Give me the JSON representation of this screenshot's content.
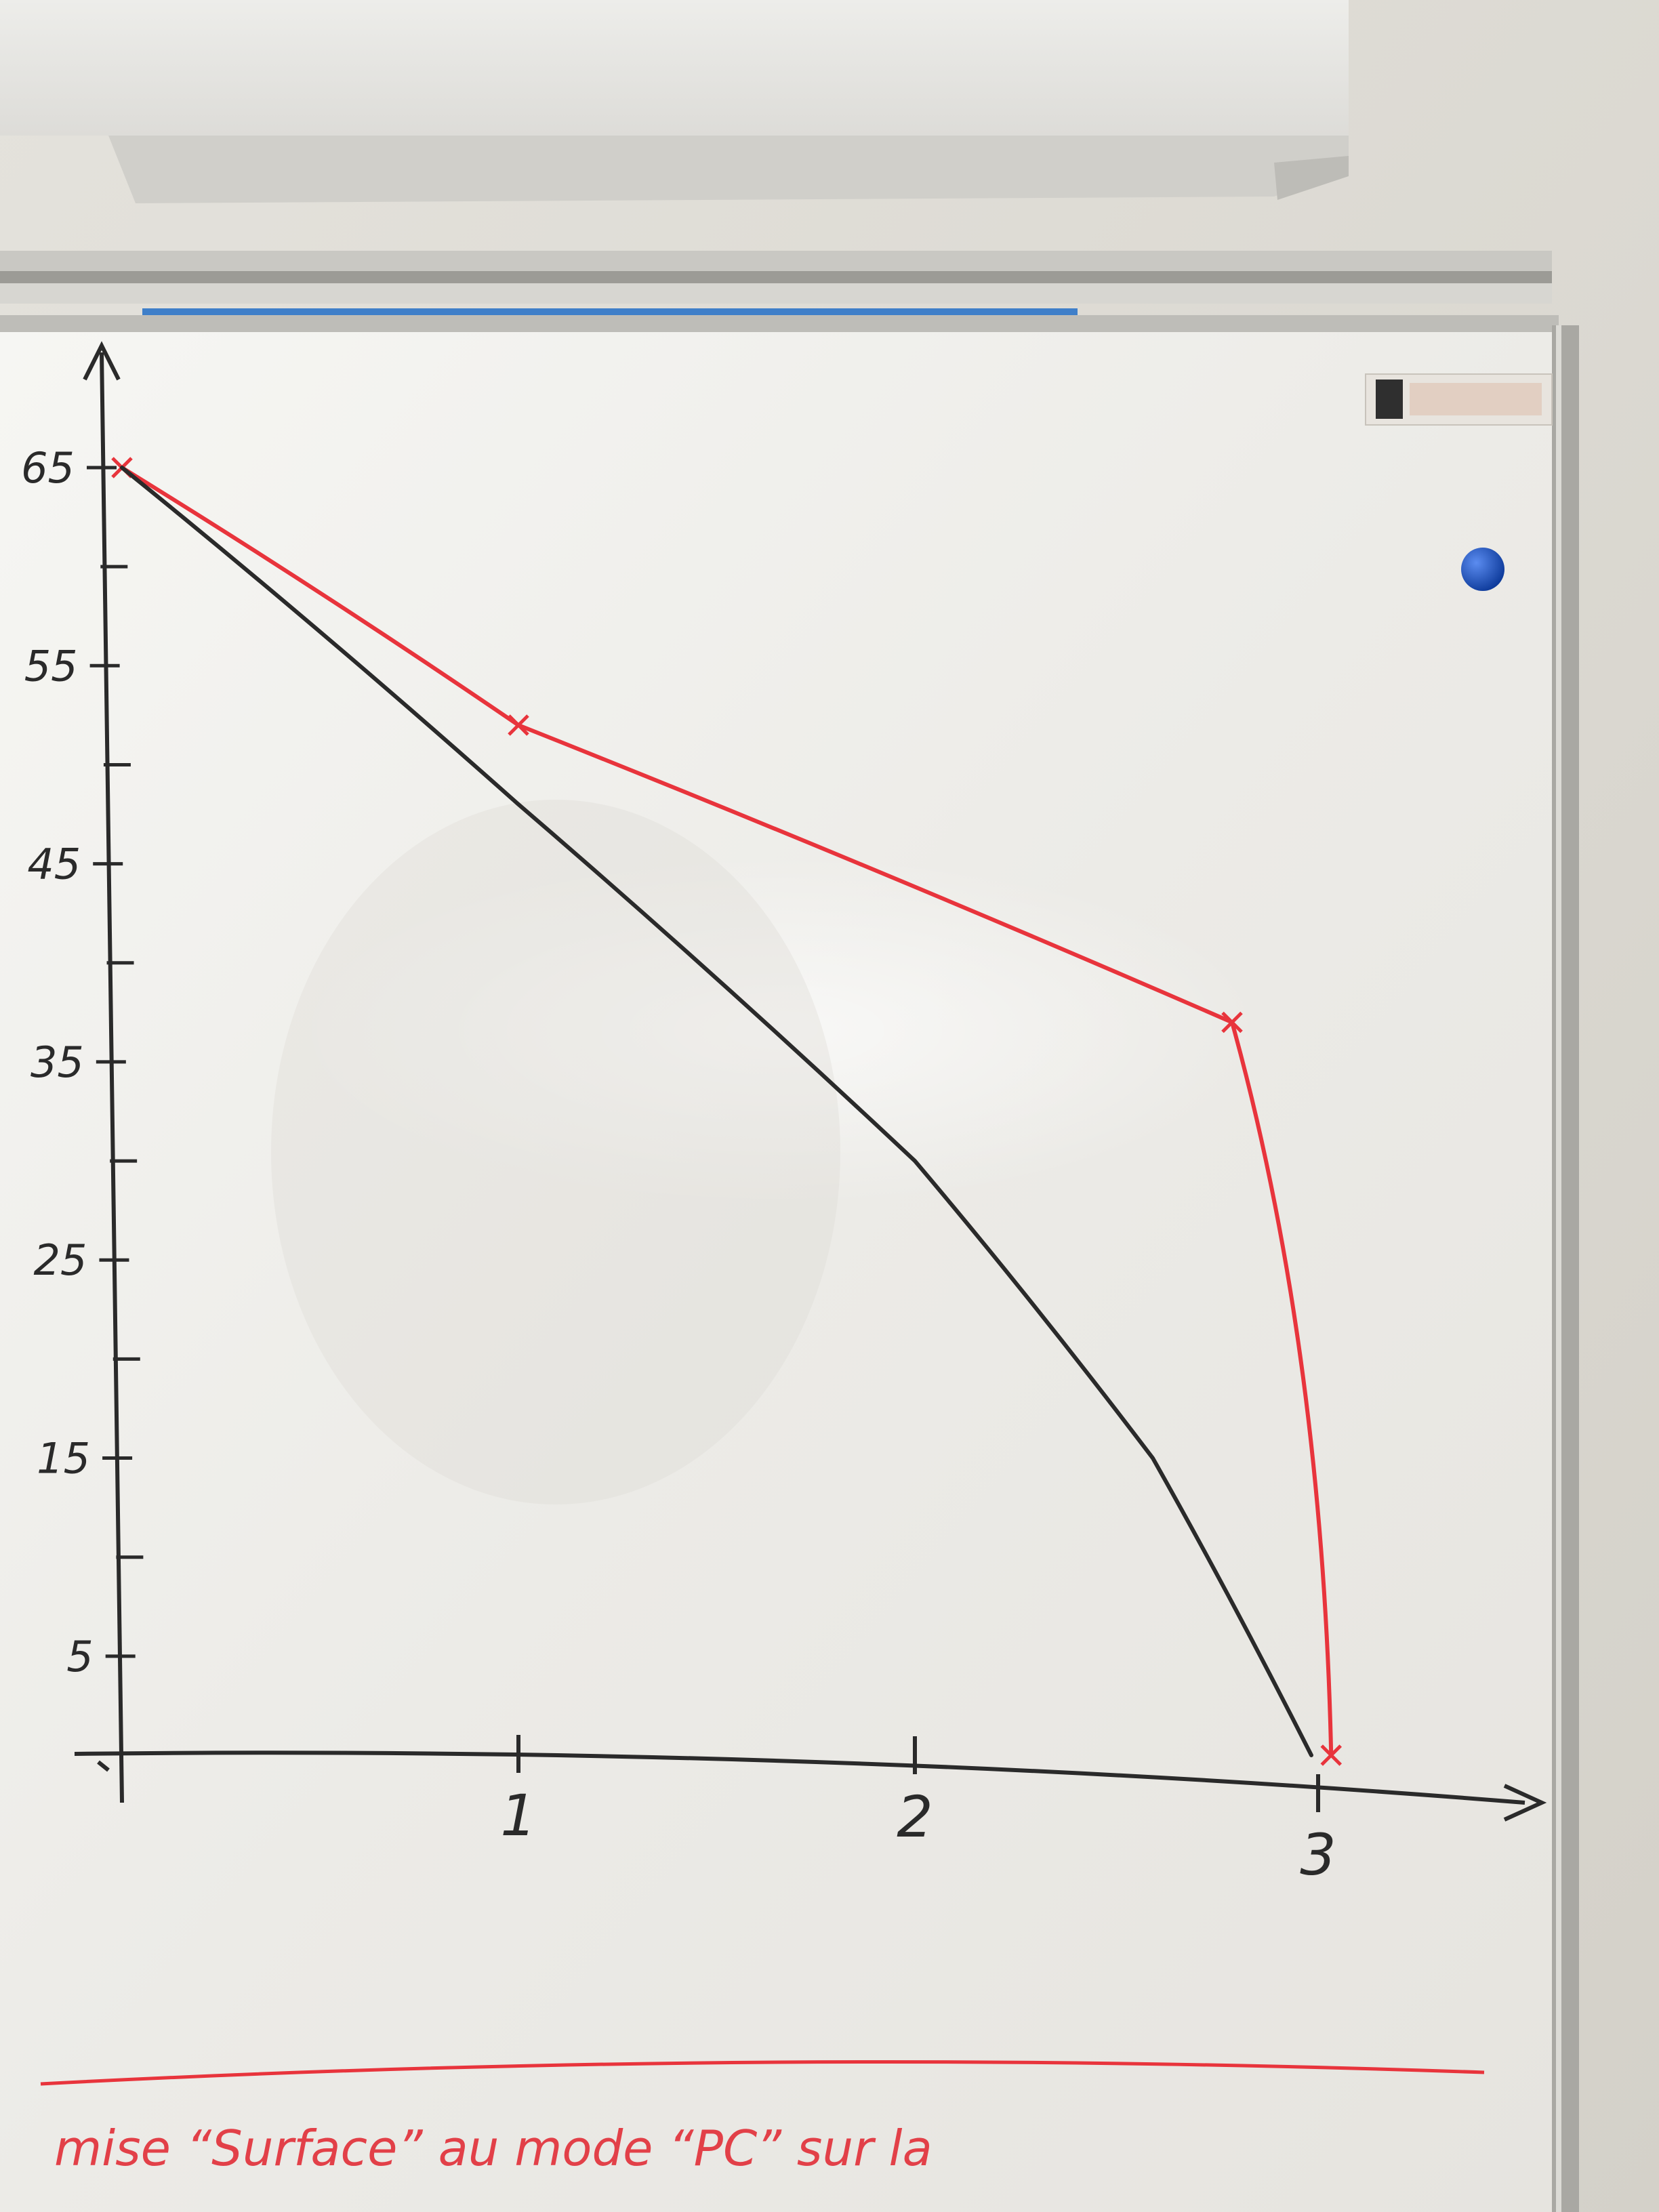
{
  "y_axis": {
    "tick_labels": [
      "65",
      "55",
      "45",
      "35",
      "25",
      "15",
      "5"
    ],
    "tick_values": [
      65,
      55,
      45,
      35,
      25,
      15,
      5
    ]
  },
  "x_axis": {
    "tick_labels": [
      "1",
      "2",
      "3"
    ],
    "tick_values": [
      1,
      2,
      3
    ]
  },
  "chart_data": {
    "type": "line",
    "ylim": [
      0,
      68
    ],
    "xlim": [
      0,
      3.2
    ],
    "series": [
      {
        "color": "#e8343c",
        "points": [
          {
            "x": 0,
            "y": 65
          },
          {
            "x": 1,
            "y": 52
          },
          {
            "x": 2.8,
            "y": 37
          },
          {
            "x": 3.05,
            "y": 0
          }
        ],
        "markers": true
      },
      {
        "color": "#2a2a2a",
        "points": [
          {
            "x": 0,
            "y": 65
          },
          {
            "x": 1,
            "y": 48
          },
          {
            "x": 2,
            "y": 30
          },
          {
            "x": 2.6,
            "y": 15
          },
          {
            "x": 3,
            "y": 0
          }
        ],
        "markers": false
      }
    ]
  },
  "note": {
    "text": "mise “Surface” au mode “PC” sur la",
    "color": "#e24048"
  },
  "colors": {
    "board": "#f1f0ec",
    "frame": "#b9b8b4",
    "wall": "#dedbd3",
    "magnet": "#1d5bd6",
    "ink_black": "#2a2a2a",
    "ink_red": "#e8343c"
  }
}
